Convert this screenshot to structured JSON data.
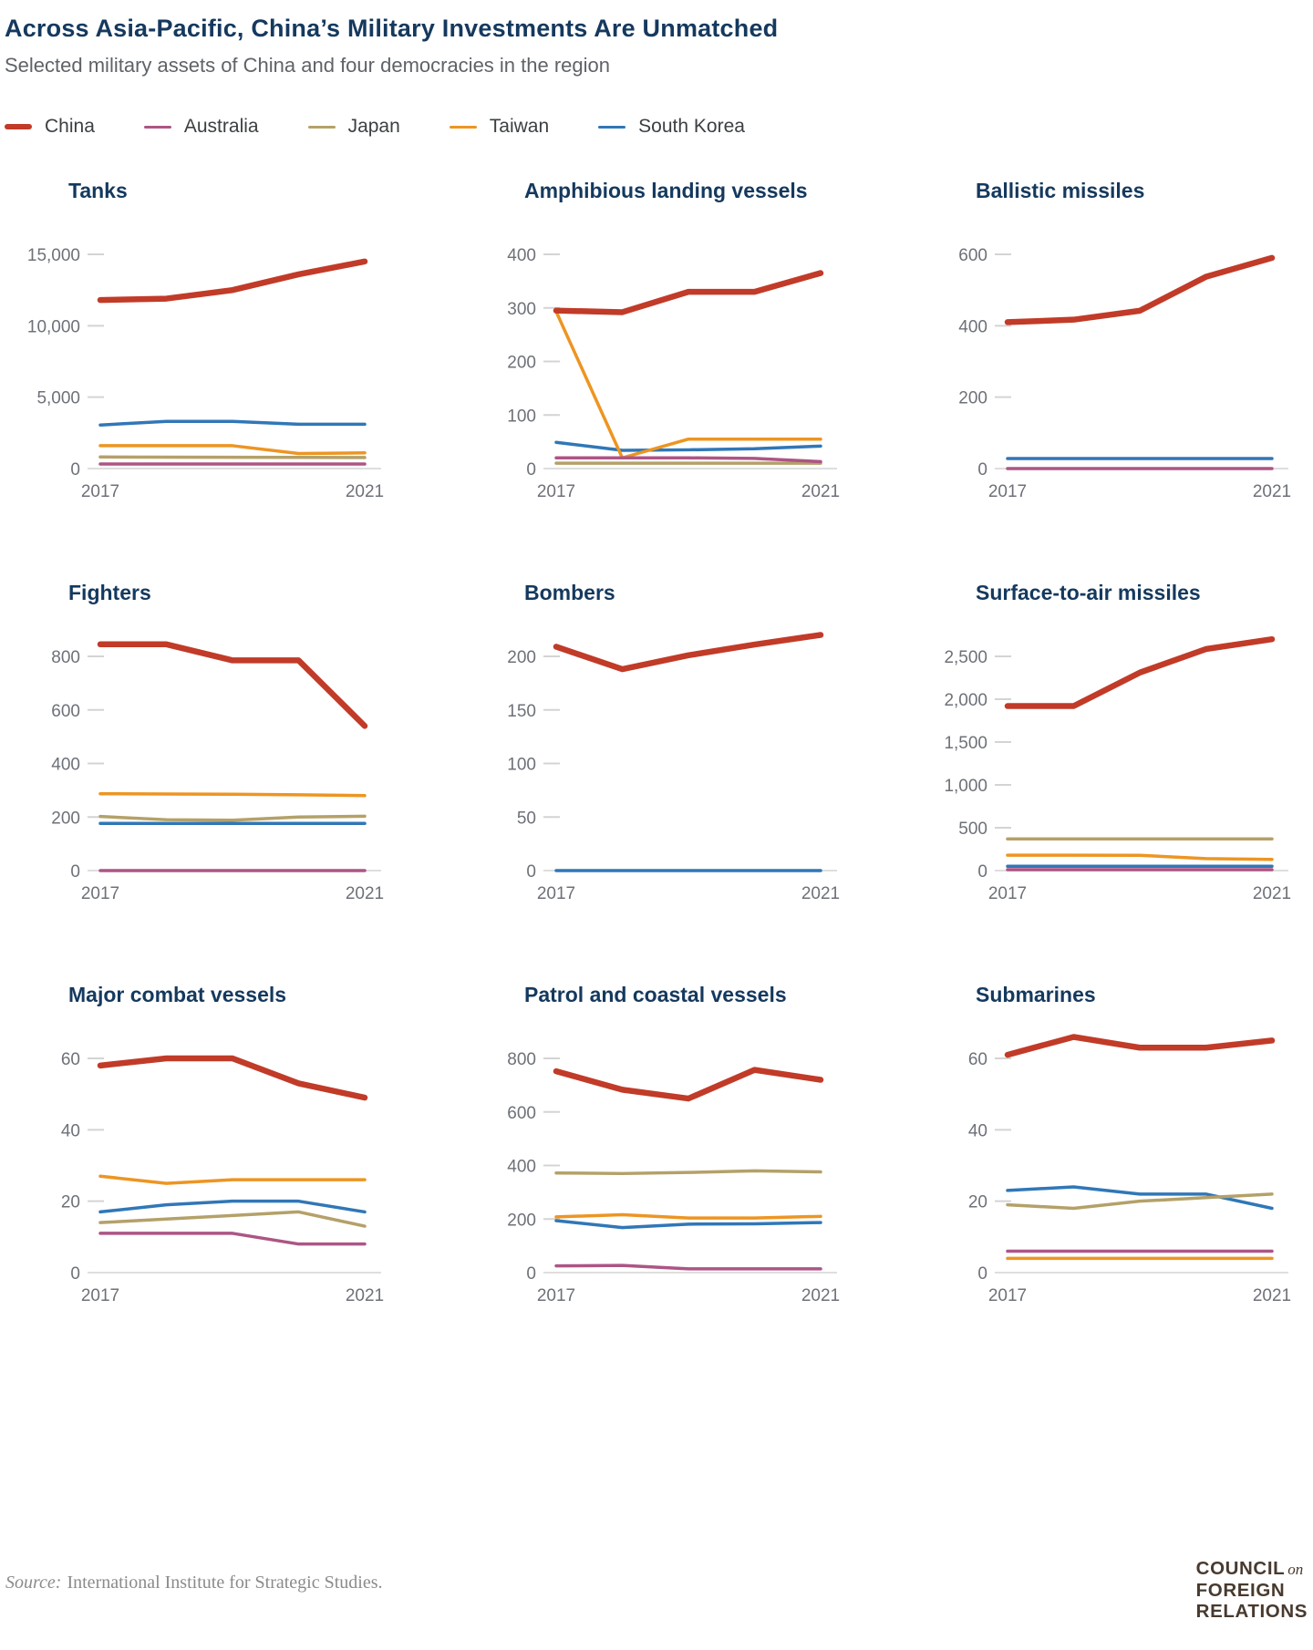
{
  "header": {
    "title": "Across Asia-Pacific, China’s Military Investments Are Unmatched",
    "subtitle": "Selected military assets of China and four democracies in the region"
  },
  "legend": [
    {
      "label": "China",
      "thick": true
    },
    {
      "label": "Australia",
      "thick": false
    },
    {
      "label": "Japan",
      "thick": false
    },
    {
      "label": "Taiwan",
      "thick": false
    },
    {
      "label": "South Korea",
      "thick": false
    }
  ],
  "colors": {
    "China": "#c13b28",
    "Australia": "#ad5585",
    "Japan": "#b4a169",
    "Taiwan": "#ed9522",
    "South Korea": "#3077b7"
  },
  "chart_data": [
    {
      "type": "line",
      "title": "Tanks",
      "x": [
        2017,
        2018,
        2019,
        2020,
        2021
      ],
      "y_ticks": [
        0,
        5000,
        10000,
        15000
      ],
      "series": [
        {
          "name": "China",
          "values": [
            11800,
            11900,
            12500,
            13600,
            14500
          ]
        },
        {
          "name": "Australia",
          "values": [
            320,
            320,
            320,
            320,
            320
          ]
        },
        {
          "name": "Japan",
          "values": [
            810,
            800,
            790,
            780,
            770
          ]
        },
        {
          "name": "Taiwan",
          "values": [
            1600,
            1600,
            1600,
            1050,
            1100
          ]
        },
        {
          "name": "South Korea",
          "values": [
            3050,
            3300,
            3300,
            3100,
            3100
          ]
        }
      ]
    },
    {
      "type": "line",
      "title": "Amphibious landing vessels",
      "x": [
        2017,
        2018,
        2019,
        2020,
        2021
      ],
      "y_ticks": [
        0,
        100,
        200,
        300,
        400
      ],
      "series": [
        {
          "name": "China",
          "values": [
            295,
            292,
            330,
            330,
            365
          ]
        },
        {
          "name": "Australia",
          "values": [
            20,
            20,
            20,
            19,
            13
          ]
        },
        {
          "name": "Japan",
          "values": [
            10,
            10,
            10,
            10,
            10
          ]
        },
        {
          "name": "Taiwan",
          "values": [
            293,
            20,
            55,
            55,
            55
          ]
        },
        {
          "name": "South Korea",
          "values": [
            49,
            34,
            35,
            37,
            42
          ]
        }
      ]
    },
    {
      "type": "line",
      "title": "Ballistic missiles",
      "x": [
        2017,
        2018,
        2019,
        2020,
        2021
      ],
      "y_ticks": [
        0,
        200,
        400,
        600
      ],
      "series": [
        {
          "name": "China",
          "values": [
            410,
            417,
            442,
            537,
            590
          ]
        },
        {
          "name": "Australia",
          "values": [
            0,
            0,
            0,
            0,
            0
          ]
        },
        {
          "name": "South Korea",
          "values": [
            28,
            28,
            28,
            28,
            28
          ]
        }
      ]
    },
    {
      "type": "line",
      "title": "Fighters",
      "x": [
        2017,
        2018,
        2019,
        2020,
        2021
      ],
      "y_ticks": [
        0,
        200,
        400,
        600,
        800
      ],
      "series": [
        {
          "name": "China",
          "values": [
            845,
            845,
            785,
            785,
            540
          ]
        },
        {
          "name": "Australia",
          "values": [
            0,
            0,
            0,
            0,
            0
          ]
        },
        {
          "name": "Japan",
          "values": [
            202,
            190,
            188,
            200,
            203
          ]
        },
        {
          "name": "Taiwan",
          "values": [
            287,
            286,
            285,
            283,
            280
          ]
        },
        {
          "name": "South Korea",
          "values": [
            176,
            176,
            176,
            176,
            176
          ]
        }
      ]
    },
    {
      "type": "line",
      "title": "Bombers",
      "x": [
        2017,
        2018,
        2019,
        2020,
        2021
      ],
      "y_ticks": [
        0,
        50,
        100,
        150,
        200
      ],
      "series": [
        {
          "name": "China",
          "values": [
            209,
            188,
            201,
            211,
            220
          ]
        },
        {
          "name": "South Korea",
          "values": [
            0,
            0,
            0,
            0,
            0
          ]
        }
      ]
    },
    {
      "type": "line",
      "title": "Surface-to-air missiles",
      "x": [
        2017,
        2018,
        2019,
        2020,
        2021
      ],
      "y_ticks": [
        0,
        500,
        1000,
        1500,
        2000,
        2500
      ],
      "series": [
        {
          "name": "China",
          "values": [
            1920,
            1920,
            2310,
            2585,
            2700
          ]
        },
        {
          "name": "Australia",
          "values": [
            10,
            10,
            10,
            10,
            10
          ]
        },
        {
          "name": "Japan",
          "values": [
            370,
            370,
            370,
            370,
            370
          ]
        },
        {
          "name": "Taiwan",
          "values": [
            180,
            180,
            178,
            140,
            130
          ]
        },
        {
          "name": "South Korea",
          "values": [
            50,
            50,
            50,
            50,
            50
          ]
        }
      ]
    },
    {
      "type": "line",
      "title": "Major combat vessels",
      "x": [
        2017,
        2018,
        2019,
        2020,
        2021
      ],
      "y_ticks": [
        0,
        20,
        40,
        60
      ],
      "series": [
        {
          "name": "China",
          "values": [
            58,
            60,
            60,
            53,
            49
          ]
        },
        {
          "name": "Australia",
          "values": [
            11,
            11,
            11,
            8,
            8
          ]
        },
        {
          "name": "Japan",
          "values": [
            14,
            15,
            16,
            17,
            13
          ]
        },
        {
          "name": "Taiwan",
          "values": [
            27,
            25,
            26,
            26,
            26
          ]
        },
        {
          "name": "South Korea",
          "values": [
            17,
            19,
            20,
            20,
            17
          ]
        }
      ]
    },
    {
      "type": "line",
      "title": "Patrol and coastal vessels",
      "x": [
        2017,
        2018,
        2019,
        2020,
        2021
      ],
      "y_ticks": [
        0,
        200,
        400,
        600,
        800
      ],
      "series": [
        {
          "name": "China",
          "values": [
            752,
            683,
            650,
            757,
            720
          ]
        },
        {
          "name": "Australia",
          "values": [
            25,
            27,
            14,
            14,
            14
          ]
        },
        {
          "name": "Japan",
          "values": [
            372,
            370,
            374,
            380,
            376
          ]
        },
        {
          "name": "Taiwan",
          "values": [
            208,
            216,
            204,
            204,
            210
          ]
        },
        {
          "name": "South Korea",
          "values": [
            194,
            168,
            181,
            182,
            187
          ]
        }
      ]
    },
    {
      "type": "line",
      "title": "Submarines",
      "x": [
        2017,
        2018,
        2019,
        2020,
        2021
      ],
      "y_ticks": [
        0,
        20,
        40,
        60
      ],
      "series": [
        {
          "name": "China",
          "values": [
            61,
            66,
            63,
            63,
            65
          ]
        },
        {
          "name": "Australia",
          "values": [
            6,
            6,
            6,
            6,
            6
          ]
        },
        {
          "name": "Japan",
          "values": [
            19,
            18,
            20,
            21,
            22
          ]
        },
        {
          "name": "Taiwan",
          "values": [
            4,
            4,
            4,
            4,
            4
          ]
        },
        {
          "name": "South Korea",
          "values": [
            23,
            24,
            22,
            22,
            18
          ]
        }
      ]
    }
  ],
  "footer": {
    "source_label": "Source:",
    "source_text": "International Institute for Strategic Studies.",
    "logo": {
      "council": "COUNCIL",
      "on": "on",
      "foreign": "FOREIGN",
      "relations": "RELATIONS"
    }
  }
}
